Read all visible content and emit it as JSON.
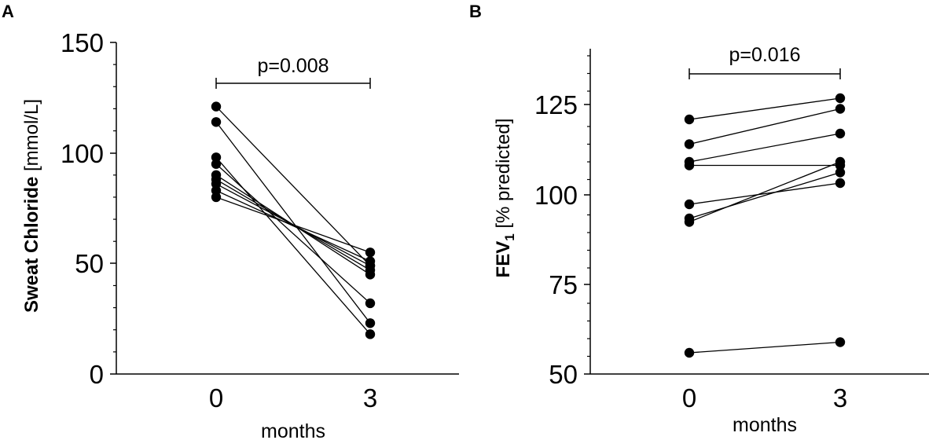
{
  "chart_data": [
    {
      "panel_label": "A",
      "type": "paired-scatter",
      "title": "",
      "xlabel": "months",
      "ylabel_bold": "Sweat Chloride",
      "ylabel_unit": " [mmol/L]",
      "categories": [
        "0",
        "3"
      ],
      "ylim": [
        0,
        150
      ],
      "yticks": [
        0,
        50,
        100,
        150
      ],
      "annotation": "p=0.008",
      "pairs": [
        [
          121,
          49
        ],
        [
          114,
          23
        ],
        [
          98,
          18
        ],
        [
          95,
          32
        ],
        [
          90,
          45
        ],
        [
          88,
          47
        ],
        [
          86,
          49
        ],
        [
          83,
          51
        ],
        [
          80,
          55
        ]
      ]
    },
    {
      "panel_label": "B",
      "type": "paired-scatter",
      "title": "",
      "xlabel": "months",
      "ylabel_bold": "FEV",
      "ylabel_sub": "1",
      "ylabel_unit": " [% predicted]",
      "categories": [
        "0",
        "3"
      ],
      "ylim": [
        50,
        142
      ],
      "yticks": [
        50,
        75,
        100,
        125
      ],
      "annotation": "p=0.016",
      "pairs": [
        [
          122,
          128
        ],
        [
          115,
          125
        ],
        [
          110,
          118
        ],
        [
          109,
          109
        ],
        [
          98,
          104
        ],
        [
          94,
          107
        ],
        [
          93,
          110
        ],
        [
          56,
          59
        ]
      ]
    }
  ]
}
